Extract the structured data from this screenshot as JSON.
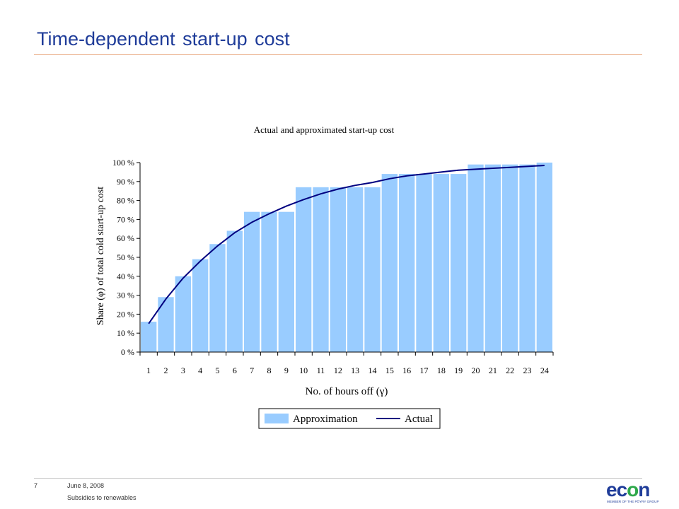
{
  "header": {
    "title": "Time-dependent start-up cost"
  },
  "footer": {
    "page_number": "7",
    "date": "June 8, 2008",
    "subtitle": "Subsidies to renewables"
  },
  "logo": {
    "text": "econ",
    "tagline": "MEMBER OF THE PÖYRY GROUP",
    "brand_color": "#1f3c99",
    "accent_color": "#2ea84a"
  },
  "colors": {
    "bar_fill": "#99ccff",
    "line": "#000080",
    "title": "#1f3c99",
    "rule": "#e8a47a"
  },
  "chart_data": {
    "type": "bar",
    "title": "Actual and approximated start-up cost",
    "xlabel": "No. of hours off (γ)",
    "ylabel": "Share (φ) of total cold start-up cost",
    "categories": [
      "1",
      "2",
      "3",
      "4",
      "5",
      "6",
      "7",
      "8",
      "9",
      "10",
      "11",
      "12",
      "13",
      "14",
      "15",
      "16",
      "17",
      "18",
      "19",
      "20",
      "21",
      "22",
      "23",
      "24"
    ],
    "ylim": [
      0,
      100
    ],
    "yticks": [
      "0 %",
      "10 %",
      "20 %",
      "30 %",
      "40 %",
      "50 %",
      "60 %",
      "70 %",
      "80 %",
      "90 %",
      "100 %"
    ],
    "legend": {
      "position": "bottom"
    },
    "series": [
      {
        "name": "Approximation",
        "kind": "bar",
        "values": [
          16,
          29,
          40,
          49,
          57,
          64,
          74,
          74,
          74,
          87,
          87,
          87,
          87,
          87,
          94,
          94,
          94,
          94,
          94,
          99,
          99,
          99,
          99,
          100
        ]
      },
      {
        "name": "Actual",
        "kind": "line",
        "values": [
          15,
          28,
          39,
          48,
          56,
          63,
          68.5,
          73,
          77,
          80.5,
          83.5,
          86,
          88,
          89.5,
          91.5,
          93,
          94,
          95,
          96,
          96.5,
          97,
          97.5,
          98,
          98.5
        ]
      }
    ]
  }
}
